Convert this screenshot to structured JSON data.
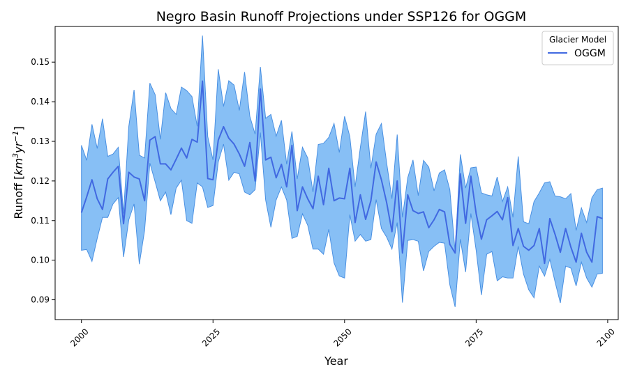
{
  "chart_data": {
    "type": "area",
    "title": "Negro Basin Runoff Projections under SSP126 for OGGM",
    "xlabel": "Year",
    "ylabel_main": "Runoff [",
    "ylabel_unit_base": "km",
    "ylabel_unit_exp1": "3",
    "ylabel_unit_mid": "yr",
    "ylabel_unit_exp2": "−1",
    "ylabel_close": "]",
    "xlim": [
      1995,
      2102
    ],
    "ylim": [
      0.085,
      0.159
    ],
    "xticks": [
      2000,
      2025,
      2050,
      2075,
      2100
    ],
    "yticks": [
      0.09,
      0.1,
      0.11,
      0.12,
      0.13,
      0.14,
      0.15
    ],
    "ytick_labels": [
      "0.09",
      "0.10",
      "0.11",
      "0.12",
      "0.13",
      "0.14",
      "0.15"
    ],
    "grid": false,
    "legend": {
      "title": "Glacier Model",
      "placement": "top-right"
    },
    "colors": {
      "line": "#4169e1",
      "band_fill": "#87bff5",
      "band_edge": "#4a90e2"
    },
    "series": [
      {
        "name": "OGGM",
        "x": [
          2000,
          2001,
          2002,
          2003,
          2004,
          2005,
          2006,
          2007,
          2008,
          2009,
          2010,
          2011,
          2012,
          2013,
          2014,
          2015,
          2016,
          2017,
          2018,
          2019,
          2020,
          2021,
          2022,
          2023,
          2024,
          2025,
          2026,
          2027,
          2028,
          2029,
          2030,
          2031,
          2032,
          2033,
          2034,
          2035,
          2036,
          2037,
          2038,
          2039,
          2040,
          2041,
          2042,
          2043,
          2044,
          2045,
          2046,
          2047,
          2048,
          2049,
          2050,
          2051,
          2052,
          2053,
          2054,
          2055,
          2056,
          2057,
          2058,
          2059,
          2060,
          2061,
          2062,
          2063,
          2064,
          2065,
          2066,
          2067,
          2068,
          2069,
          2070,
          2071,
          2072,
          2073,
          2074,
          2075,
          2076,
          2077,
          2078,
          2079,
          2080,
          2081,
          2082,
          2083,
          2084,
          2085,
          2086,
          2087,
          2088,
          2089,
          2090,
          2091,
          2092,
          2093,
          2094,
          2095,
          2096,
          2097,
          2098,
          2099
        ],
        "y": [
          0.112,
          0.116,
          0.1203,
          0.1155,
          0.1128,
          0.1205,
          0.1222,
          0.1237,
          0.1092,
          0.1222,
          0.121,
          0.1205,
          0.115,
          0.1303,
          0.1312,
          0.1243,
          0.1243,
          0.1228,
          0.1255,
          0.1283,
          0.1258,
          0.1305,
          0.1298,
          0.1452,
          0.1206,
          0.1203,
          0.1303,
          0.1337,
          0.1308,
          0.1293,
          0.1268,
          0.1237,
          0.1297,
          0.12,
          0.1432,
          0.1253,
          0.126,
          0.1208,
          0.1242,
          0.1185,
          0.129,
          0.1125,
          0.1185,
          0.1155,
          0.113,
          0.1212,
          0.114,
          0.1232,
          0.115,
          0.1157,
          0.1155,
          0.1232,
          0.1095,
          0.1165,
          0.1103,
          0.115,
          0.1248,
          0.1203,
          0.1145,
          0.1072,
          0.12,
          0.1018,
          0.1165,
          0.1125,
          0.1118,
          0.1122,
          0.1082,
          0.1102,
          0.1128,
          0.1122,
          0.104,
          0.1018,
          0.1218,
          0.1093,
          0.1212,
          0.1118,
          0.1053,
          0.1102,
          0.1112,
          0.1123,
          0.1102,
          0.1158,
          0.1037,
          0.108,
          0.1035,
          0.1025,
          0.1037,
          0.108,
          0.0992,
          0.1105,
          0.1065,
          0.102,
          0.108,
          0.1033,
          0.0995,
          0.1068,
          0.102,
          0.0995,
          0.111,
          0.1105
        ],
        "lower": [
          0.1025,
          0.1027,
          0.0997,
          0.1055,
          0.1108,
          0.1108,
          0.1142,
          0.1158,
          0.1008,
          0.1102,
          0.1142,
          0.099,
          0.1075,
          0.1245,
          0.1198,
          0.115,
          0.1172,
          0.1115,
          0.1182,
          0.1202,
          0.11,
          0.1093,
          0.1195,
          0.1185,
          0.1133,
          0.1138,
          0.1248,
          0.1293,
          0.1202,
          0.1222,
          0.1218,
          0.1172,
          0.1165,
          0.1178,
          0.1322,
          0.1152,
          0.1083,
          0.1152,
          0.1185,
          0.1152,
          0.1055,
          0.106,
          0.1117,
          0.1088,
          0.1028,
          0.1028,
          0.1015,
          0.1078,
          0.0993,
          0.096,
          0.0955,
          0.1115,
          0.1048,
          0.1065,
          0.1048,
          0.1052,
          0.1153,
          0.108,
          0.1058,
          0.1028,
          0.1095,
          0.0893,
          0.105,
          0.1052,
          0.1048,
          0.0973,
          0.1022,
          0.1035,
          0.1045,
          0.1043,
          0.0938,
          0.0882,
          0.1053,
          0.097,
          0.1118,
          0.1025,
          0.0912,
          0.1015,
          0.1022,
          0.0948,
          0.0958,
          0.0955,
          0.0955,
          0.1035,
          0.0965,
          0.0925,
          0.0905,
          0.0985,
          0.096,
          0.1002,
          0.0945,
          0.0892,
          0.0985,
          0.098,
          0.0935,
          0.0995,
          0.0955,
          0.0932,
          0.0965,
          0.0967
        ],
        "upper": [
          0.129,
          0.1252,
          0.1343,
          0.1282,
          0.1357,
          0.1262,
          0.1268,
          0.1285,
          0.1118,
          0.1338,
          0.143,
          0.1265,
          0.1258,
          0.1447,
          0.1418,
          0.1305,
          0.1423,
          0.1383,
          0.1368,
          0.1437,
          0.1428,
          0.1413,
          0.1338,
          0.1567,
          0.1312,
          0.1253,
          0.1482,
          0.1388,
          0.1453,
          0.1442,
          0.1378,
          0.1475,
          0.1363,
          0.1318,
          0.1488,
          0.1358,
          0.1368,
          0.1313,
          0.1353,
          0.1242,
          0.1325,
          0.1205,
          0.1285,
          0.1258,
          0.1172,
          0.1292,
          0.1295,
          0.131,
          0.1345,
          0.1272,
          0.1363,
          0.1312,
          0.1185,
          0.1285,
          0.1375,
          0.1232,
          0.1318,
          0.1345,
          0.1245,
          0.1155,
          0.1317,
          0.1108,
          0.1208,
          0.1253,
          0.1163,
          0.1252,
          0.1235,
          0.1175,
          0.122,
          0.1228,
          0.1178,
          0.1022,
          0.1267,
          0.1182,
          0.1233,
          0.1235,
          0.117,
          0.1165,
          0.1162,
          0.121,
          0.1148,
          0.1185,
          0.1108,
          0.1262,
          0.1097,
          0.1092,
          0.1148,
          0.117,
          0.1195,
          0.1198,
          0.1162,
          0.116,
          0.1155,
          0.1168,
          0.1075,
          0.1132,
          0.1095,
          0.1158,
          0.1178,
          0.1182
        ]
      }
    ]
  }
}
